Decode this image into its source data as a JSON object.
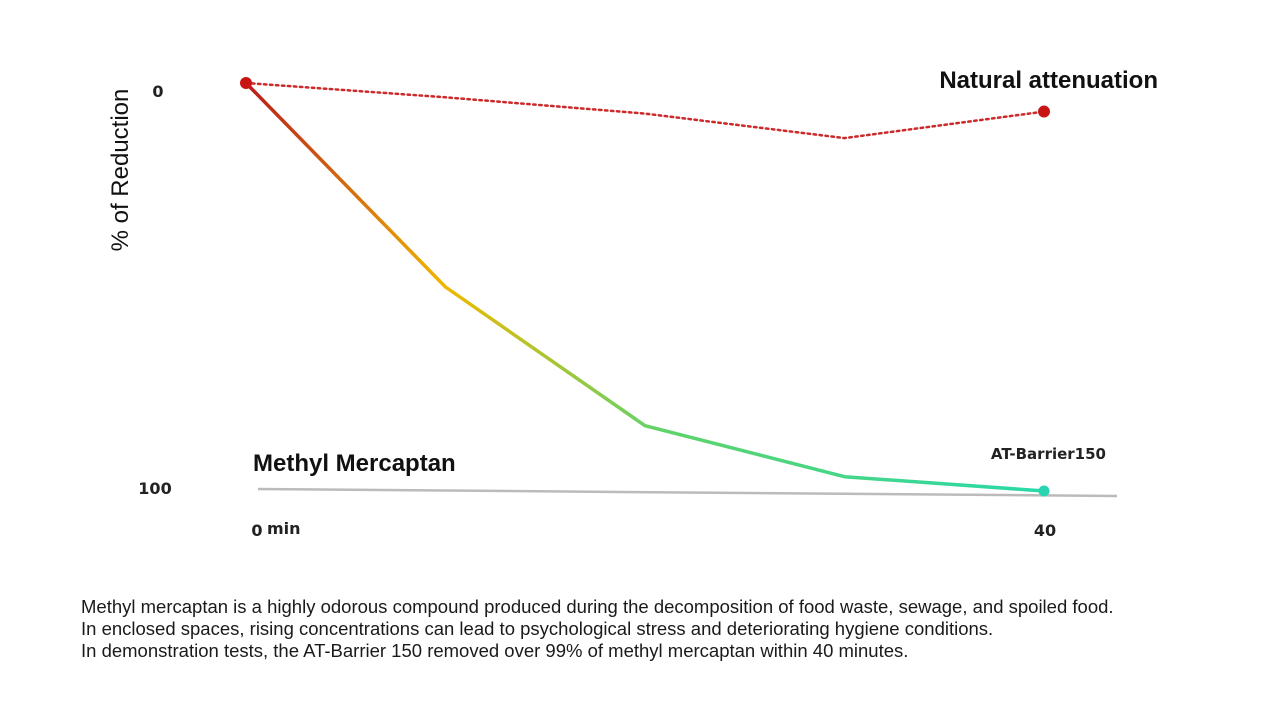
{
  "chart_data": {
    "type": "line",
    "title": "Methyl Mercaptan",
    "ylabel": "% of Reduction",
    "xlabel": "",
    "x_unit": "min",
    "x": [
      0,
      10,
      20,
      30,
      40
    ],
    "xlim": [
      0,
      40
    ],
    "ylim": [
      0,
      100
    ],
    "y_inverted": true,
    "x_ticks": [
      "0",
      "40"
    ],
    "y_ticks": [
      "0",
      "100"
    ],
    "grid": false,
    "series": [
      {
        "name": "Natural attenuation",
        "style": "dotted",
        "color": "#cc2a2a",
        "values": [
          0,
          3.5,
          7.5,
          13.5,
          7
        ]
      },
      {
        "name": "AT-Barrier150",
        "style": "solid-gradient",
        "gradient": [
          "#b71c1c",
          "#f0b800",
          "#5fd36a",
          "#28d9aa"
        ],
        "values": [
          0,
          50,
          84,
          96.5,
          100
        ]
      }
    ],
    "colors": {
      "marker_start": "#c81414",
      "marker_natural": "#c81414",
      "marker_barrier": "#2ad4b0",
      "baseline": "#bbbbbb"
    }
  },
  "caption": {
    "lines": [
      "Methyl mercaptan is a highly odorous compound produced during the decomposition of food waste, sewage, and spoiled food.",
      "In enclosed spaces, rising concentrations can lead to psychological stress and deteriorating hygiene conditions.",
      "In demonstration tests, the AT-Barrier 150 removed over 99% of methyl mercaptan within 40 minutes."
    ]
  }
}
